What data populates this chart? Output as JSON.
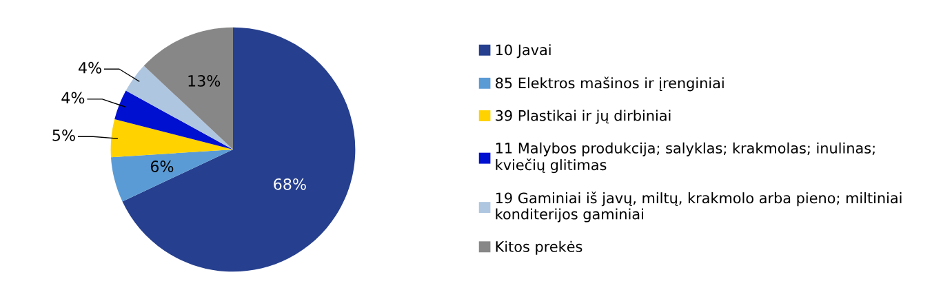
{
  "chart_data": {
    "type": "pie",
    "categories": [
      "10 Javai",
      "85 Elektros mašinos ir įrenginiai",
      "39 Plastikai ir jų dirbiniai",
      "11 Malybos produkcija; salyklas; krakmolas; inulinas;\nkviečių glitimas",
      "19 Gaminiai iš javų, miltų, krakmolo arba pieno; miltiniai\nkonditerijos gaminiai",
      "Kitos prekės"
    ],
    "values": [
      68,
      6,
      5,
      4,
      4,
      13
    ],
    "value_labels": [
      "68%",
      "6%",
      "5%",
      "4%",
      "4%",
      "13%"
    ],
    "colors": [
      "#263f8e",
      "#5b9bd5",
      "#ffd200",
      "#0010d0",
      "#afc6e0",
      "#878787"
    ],
    "legend": "right"
  }
}
